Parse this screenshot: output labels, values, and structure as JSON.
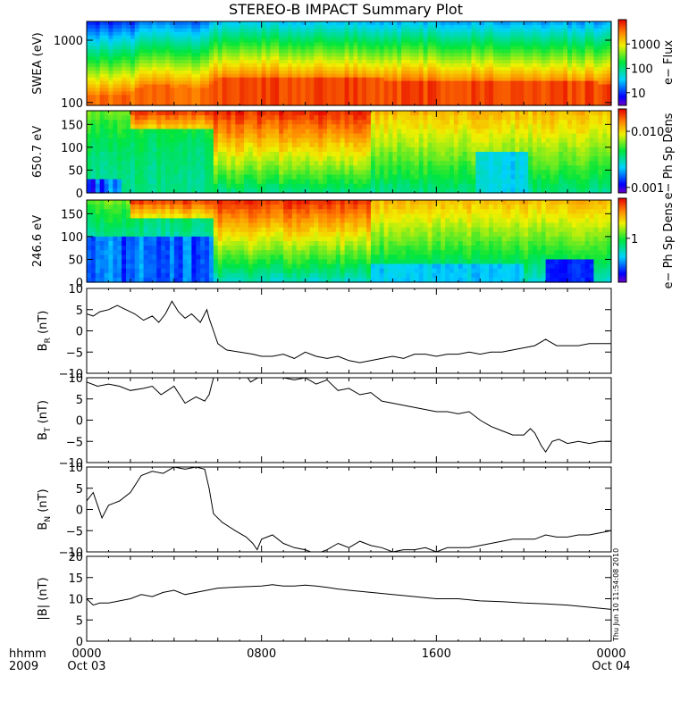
{
  "title": "STEREO-B IMPACT Summary Plot",
  "time_axis": {
    "row1": [
      "0000",
      "0800",
      "1600",
      "0000"
    ],
    "row2": [
      "Oct 03",
      "",
      "",
      "Oct 04"
    ],
    "x_values": [
      0,
      8,
      16,
      24
    ],
    "label_line1": "hhmm",
    "label_line2": "2009"
  },
  "timestamp_text": "Thu Jun 10 11:54:08 2010",
  "colors": {
    "background": "#ffffff",
    "line": "#000000"
  },
  "chart_data": [
    {
      "type": "heatmap",
      "id": "swea",
      "ylabel": "SWEA (eV)",
      "y_scale": "log",
      "ylim": [
        90,
        2000
      ],
      "yticks": [
        100,
        1000
      ],
      "ytick_labels": [
        "100",
        "1000"
      ],
      "x_range_hours": [
        0,
        24
      ],
      "colorbar": {
        "label": "e− Flux",
        "scale": "log",
        "range": [
          3,
          10000
        ],
        "ticks": [
          10,
          100,
          1000
        ],
        "tick_labels": [
          "10",
          "100",
          "1000"
        ]
      },
      "x_hours": [
        0,
        2,
        2.6,
        3.3,
        4,
        4.4,
        5,
        5.5,
        6,
        7,
        8,
        9,
        10,
        11,
        12,
        13,
        14,
        15,
        16,
        17,
        18,
        19,
        20,
        21,
        22,
        23,
        24
      ],
      "core_energy_eV": [
        135,
        140,
        185,
        190,
        180,
        185,
        175,
        180,
        250,
        260,
        260,
        255,
        250,
        245,
        240,
        240,
        235,
        230,
        225,
        225,
        225,
        220,
        220,
        215,
        210,
        210,
        205
      ]
    },
    {
      "type": "heatmap",
      "id": "pad-650",
      "ylabel": "650.7 eV",
      "ylim": [
        0,
        180
      ],
      "yticks": [
        0,
        50,
        100,
        150
      ],
      "ytick_labels": [
        "0",
        "50",
        "100",
        "150"
      ],
      "x_range_hours": [
        0,
        24
      ],
      "colorbar": {
        "label": "e− Ph Sp Dens",
        "scale": "log",
        "range": [
          0.0008,
          0.025
        ],
        "ticks": [
          0.001,
          0.01
        ],
        "tick_labels": [
          "0.001",
          "0.010"
        ]
      }
    },
    {
      "type": "heatmap",
      "id": "pad-246",
      "ylabel": "246.6 eV",
      "ylim": [
        0,
        180
      ],
      "yticks": [
        0,
        50,
        100,
        150
      ],
      "ytick_labels": [
        "0",
        "50",
        "100",
        "150"
      ],
      "x_range_hours": [
        0,
        24
      ],
      "colorbar": {
        "label": "e− Ph Sp Dens",
        "scale": "log",
        "range": [
          0.3,
          3
        ],
        "ticks": [
          1
        ],
        "tick_labels": [
          "1"
        ]
      }
    },
    {
      "type": "line",
      "id": "br",
      "ylabel_main": "B",
      "ylabel_sub": "R",
      "ylabel_unit": " (nT)",
      "ylim": [
        -10,
        10
      ],
      "yticks": [
        -10,
        -5,
        0,
        5,
        10
      ],
      "ytick_labels": [
        "−10",
        "−5",
        "0",
        "5",
        "10"
      ],
      "x_hours": [
        0,
        0.3,
        0.6,
        1,
        1.4,
        1.8,
        2.2,
        2.6,
        3.0,
        3.3,
        3.6,
        3.9,
        4.2,
        4.5,
        4.8,
        5.2,
        5.5,
        5.6,
        5.8,
        6.0,
        6.4,
        7.0,
        7.6,
        8.0,
        8.5,
        9.0,
        9.5,
        10.0,
        10.5,
        11.0,
        11.5,
        12.0,
        12.5,
        13.0,
        13.5,
        14.0,
        14.5,
        15.0,
        15.5,
        16.0,
        16.5,
        17.0,
        17.5,
        18.0,
        18.5,
        19.0,
        19.5,
        20.0,
        20.5,
        21.0,
        21.5,
        22.0,
        22.5,
        23.0,
        23.5,
        24.0
      ],
      "values": [
        4,
        3.5,
        4.5,
        5,
        6,
        5,
        4,
        2.5,
        3.5,
        2,
        4,
        7,
        4.5,
        3,
        4,
        2,
        5,
        3,
        0,
        -3,
        -4.5,
        -5,
        -5.5,
        -6,
        -6,
        -5.5,
        -6.5,
        -5,
        -6,
        -6.5,
        -6,
        -7,
        -7.5,
        -7,
        -6.5,
        -6,
        -6.5,
        -5.5,
        -5.5,
        -6,
        -5.5,
        -5.5,
        -5,
        -5.5,
        -5,
        -5,
        -4.5,
        -4,
        -3.5,
        -2,
        -3.5,
        -3.5,
        -3.5,
        -3,
        -3,
        -3
      ]
    },
    {
      "type": "line",
      "id": "bt",
      "ylabel_main": "B",
      "ylabel_sub": "T",
      "ylabel_unit": " (nT)",
      "ylim": [
        -10,
        10
      ],
      "yticks": [
        -10,
        -5,
        0,
        5,
        10
      ],
      "ytick_labels": [
        "−10",
        "−5",
        "0",
        "5",
        "10"
      ],
      "x_hours": [
        0,
        0.5,
        1,
        1.5,
        2,
        2.6,
        3.0,
        3.4,
        3.7,
        4.0,
        4.5,
        5.0,
        5.4,
        5.6,
        5.8,
        6.0,
        6.8,
        7.3,
        7.5,
        8.0,
        8.5,
        9.0,
        9.5,
        10.0,
        10.5,
        11.0,
        11.5,
        12.0,
        12.5,
        13.0,
        13.5,
        14.0,
        14.5,
        15.0,
        15.5,
        16.0,
        16.5,
        17.0,
        17.5,
        18.0,
        18.5,
        19.0,
        19.5,
        20.0,
        20.3,
        20.5,
        20.8,
        21.0,
        21.3,
        21.6,
        22.0,
        22.5,
        23.0,
        23.5,
        24.0
      ],
      "values": [
        9,
        8,
        8.5,
        8,
        7,
        7.5,
        8,
        6,
        7,
        8,
        4,
        5.5,
        4.5,
        6,
        10,
        10.5,
        10.5,
        10.5,
        9,
        10.5,
        10.5,
        10,
        9.5,
        10,
        8.5,
        9.5,
        7,
        7.5,
        6,
        6.5,
        4.5,
        4,
        3.5,
        3,
        2.5,
        2,
        2,
        1.5,
        2,
        0,
        -1.5,
        -2.5,
        -3.5,
        -3.5,
        -2,
        -3,
        -6,
        -7.5,
        -5,
        -4.5,
        -5.5,
        -5,
        -5.5,
        -5,
        -5
      ]
    },
    {
      "type": "line",
      "id": "bn",
      "ylabel_main": "B",
      "ylabel_sub": "N",
      "ylabel_unit": " (nT)",
      "ylim": [
        -10,
        10
      ],
      "yticks": [
        -10,
        -5,
        0,
        5,
        10
      ],
      "ytick_labels": [
        "−10",
        "−5",
        "0",
        "5",
        "10"
      ],
      "x_hours": [
        0,
        0.3,
        0.5,
        0.7,
        1.0,
        1.5,
        2.0,
        2.5,
        3.0,
        3.5,
        4.0,
        4.5,
        5.0,
        5.4,
        5.6,
        5.8,
        6.2,
        6.8,
        7.3,
        7.6,
        7.8,
        8.0,
        8.5,
        9.0,
        9.5,
        10.0,
        10.5,
        11.0,
        11.5,
        12.0,
        12.5,
        13.0,
        13.5,
        14.0,
        14.5,
        15.0,
        15.5,
        16.0,
        16.5,
        17.0,
        17.5,
        18.0,
        18.5,
        19.0,
        19.5,
        20.0,
        20.5,
        21.0,
        21.5,
        22.0,
        22.5,
        23.0,
        23.5,
        24.0
      ],
      "values": [
        2,
        4,
        1,
        -2,
        1,
        2,
        4,
        8,
        9,
        8.5,
        10,
        9.5,
        10,
        9.5,
        5,
        -1,
        -3,
        -5,
        -6.5,
        -8,
        -9.5,
        -7,
        -6,
        -8,
        -9,
        -9.5,
        -10.5,
        -9.5,
        -8,
        -9,
        -7.5,
        -8.5,
        -9,
        -10,
        -9.5,
        -9.5,
        -9,
        -10,
        -9,
        -9,
        -9,
        -8.5,
        -8,
        -7.5,
        -7,
        -7,
        -7,
        -6,
        -6.5,
        -6.5,
        -6,
        -6,
        -5.5,
        -5
      ]
    },
    {
      "type": "line",
      "id": "btot",
      "ylabel_main": "|B| (nT)",
      "ylim": [
        0,
        20
      ],
      "yticks": [
        0,
        5,
        10,
        15,
        20
      ],
      "ytick_labels": [
        "0",
        "5",
        "10",
        "15",
        "20"
      ],
      "x_hours": [
        0,
        0.3,
        0.6,
        1.0,
        1.5,
        2.0,
        2.5,
        3.0,
        3.5,
        4.0,
        4.5,
        5.0,
        5.5,
        6.0,
        7.0,
        8.0,
        8.5,
        9.0,
        9.5,
        10.0,
        10.5,
        11.0,
        11.5,
        12.0,
        13.0,
        14.0,
        15.0,
        16.0,
        17.0,
        18.0,
        19.0,
        20.0,
        21.0,
        22.0,
        23.0,
        24.0
      ],
      "values": [
        10,
        8.5,
        9,
        9,
        9.5,
        10,
        11,
        10.5,
        11.5,
        12,
        11,
        11.5,
        12,
        12.5,
        12.8,
        13,
        13.3,
        13,
        13,
        13.2,
        13,
        12.7,
        12.3,
        12,
        11.5,
        11,
        10.5,
        10,
        10,
        9.5,
        9.3,
        9,
        8.8,
        8.5,
        8,
        7.5
      ]
    }
  ]
}
